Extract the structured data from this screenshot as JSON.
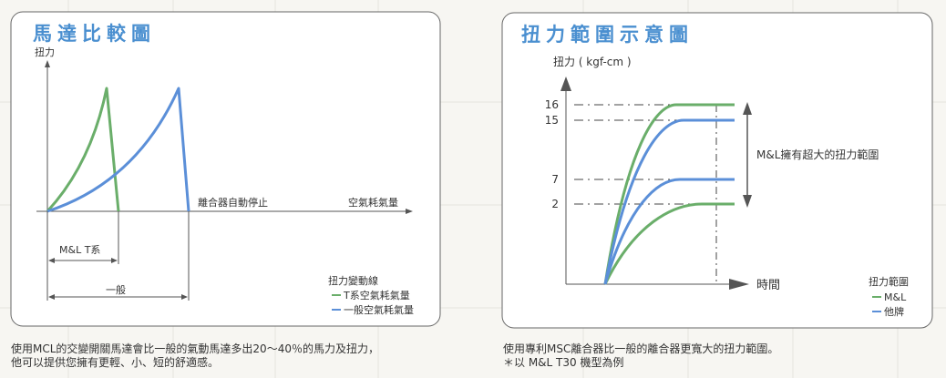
{
  "chart_data": [
    {
      "type": "line",
      "title": "馬達比較圖",
      "ylabel": "扭力",
      "xlabel": "空氣耗氣量",
      "annotations": [
        "離合器自動停止",
        "M&L T系",
        "一般"
      ],
      "legend_title": "扭力變動線",
      "legend_placement": "bottom-right",
      "series": [
        {
          "name": "T系空氣耗氣量",
          "color": "#6aae6a"
        },
        {
          "name": "一般空氣耗氣量",
          "color": "#5b8fd8"
        }
      ],
      "caption": [
        "使用MCL的交變開關馬達會比一般的氣動馬達多出20～40％的馬力及扭力，",
        "他可以提供您擁有更輕、小、短的舒適感。"
      ]
    },
    {
      "type": "line",
      "title": "扭力範圍示意圖",
      "ylabel": "扭力 ( kgf-cm )",
      "xlabel": "時間",
      "yticks": [
        16,
        15,
        7,
        2
      ],
      "annotation": "M&L擁有超大的扭力範圍",
      "legend_title": "扭力範圍",
      "legend_placement": "bottom-right",
      "series": [
        {
          "name": "M&L",
          "color": "#6aae6a",
          "plateaus": [
            16,
            2
          ]
        },
        {
          "name": "他牌",
          "color": "#5b8fd8",
          "plateaus": [
            15,
            7
          ]
        }
      ],
      "caption": [
        "使用專利MSC離合器比一般的離合器更寬大的扭力範圍。",
        "＊以 M&L T30 機型為例"
      ]
    }
  ]
}
